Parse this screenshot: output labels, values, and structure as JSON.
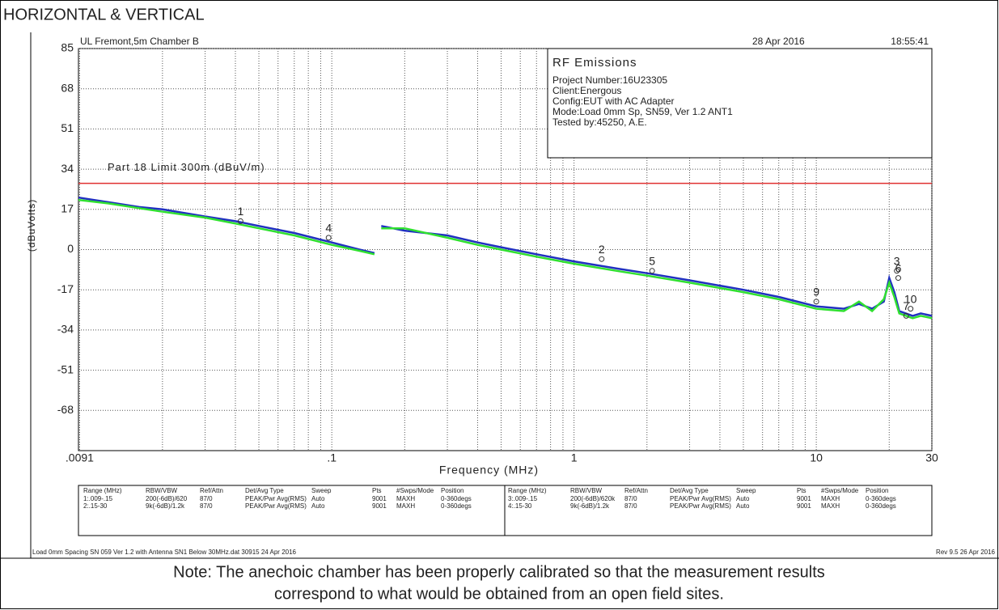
{
  "heading": "HORIZONTAL & VERTICAL",
  "chart_data": {
    "type": "line",
    "site": "UL Fremont,5m Chamber B",
    "date": "28 Apr 2016",
    "time": "18:55:41",
    "xlabel": "Frequency (MHz)",
    "ylabel": "(dBuVolts)",
    "xscale": "log",
    "grid": true,
    "xlim": [
      0.009,
      30
    ],
    "ylim": [
      -85,
      85
    ],
    "xticks": [
      {
        "value": 0.0091,
        "label": ".0091"
      },
      {
        "value": 0.1,
        "label": ".1"
      },
      1,
      10,
      30
    ],
    "xminor_ticks": [
      0.02,
      0.03,
      0.04,
      0.05,
      0.06,
      0.07,
      0.08,
      0.09,
      0.2,
      0.3,
      0.4,
      0.5,
      0.6,
      0.7,
      0.8,
      0.9,
      2,
      3,
      4,
      5,
      6,
      7,
      8,
      9,
      20
    ],
    "yticks": [
      85,
      68,
      51,
      34,
      17,
      0,
      -17,
      -34,
      -51,
      -68
    ],
    "limit": {
      "label": "Part 18 Limit 300m (dBuV/m)",
      "value": 28,
      "color": "#e03030"
    },
    "x": [
      0.009,
      0.012,
      0.016,
      0.02,
      0.03,
      0.04,
      0.05,
      0.07,
      0.1,
      0.13,
      0.15,
      0.155,
      0.16,
      0.2,
      0.3,
      0.4,
      0.5,
      0.7,
      1,
      1.5,
      2,
      3,
      5,
      7,
      10,
      13,
      15,
      17,
      19,
      20,
      21,
      22,
      25,
      27,
      30
    ],
    "series": [
      {
        "name": "Horizontal",
        "color": "#2030c0",
        "values": [
          22,
          20,
          18,
          17,
          14,
          12,
          10,
          7,
          3,
          0,
          -1.5,
          null,
          10,
          8,
          6,
          3,
          1,
          -2,
          -5,
          -8,
          -10,
          -13,
          -17,
          -20,
          -24,
          -25,
          -23,
          -25,
          -22,
          -12,
          -18,
          -26,
          -28,
          -27,
          -28
        ]
      },
      {
        "name": "Vertical",
        "color": "#30e030",
        "values": [
          21,
          19.5,
          17.5,
          16,
          13.5,
          11,
          9,
          6,
          2,
          -0.5,
          -2,
          null,
          9,
          9,
          5,
          2,
          0,
          -3,
          -6,
          -9,
          -11,
          -14,
          -18,
          -21,
          -25,
          -26,
          -22,
          -26,
          -21,
          -14,
          -20,
          -27,
          -29,
          -28,
          -29
        ]
      }
    ],
    "markers": [
      {
        "label": "1",
        "x": 0.042,
        "y": 12
      },
      {
        "label": "4",
        "x": 0.097,
        "y": 5
      },
      {
        "label": "2",
        "x": 1.3,
        "y": -4
      },
      {
        "label": "5",
        "x": 2.1,
        "y": -9
      },
      {
        "label": "9",
        "x": 10,
        "y": -22
      },
      {
        "label": "3",
        "x": 21.5,
        "y": -9
      },
      {
        "label": "6",
        "x": 21.8,
        "y": -12
      },
      {
        "label": "10",
        "x": 24.5,
        "y": -25
      },
      {
        "label": "7",
        "x": 23.5,
        "y": -28
      }
    ],
    "info": {
      "title": "RF Emissions",
      "lines": [
        "Project Number:16U23305",
        "Client:Energous",
        "Config:EUT with AC Adapter",
        "Mode:Load 0mm Sp, SN59, Ver 1.2 ANT1",
        "Tested by:45250, A.E."
      ]
    }
  },
  "table": {
    "header": [
      "Range (MHz)",
      "RBW/VBW",
      "Ref/Attn",
      "Det/Avg Type",
      "Sweep",
      "Pts",
      "#Swps/Mode",
      "Position"
    ],
    "left_rows": [
      [
        "1:.009-.15",
        "200(-6dB)/620",
        "87/0",
        "PEAK/Pwr Avg(RMS)",
        "Auto",
        "9001",
        "MAXH",
        "0-360degs"
      ],
      [
        "2:.15-30",
        "9k(-6dB)/1.2k",
        "87/0",
        "PEAK/Pwr Avg(RMS)",
        "Auto",
        "9001",
        "MAXH",
        "0-360degs"
      ]
    ],
    "right_rows": [
      [
        "3:.009-.15",
        "200(-6dB)/620k",
        "87/0",
        "PEAK/Pwr Avg(RMS)",
        "Auto",
        "9001",
        "MAXH",
        "0-360degs"
      ],
      [
        "4:.15-30",
        "9k(-6dB)/1.2k",
        "87/0",
        "PEAK/Pwr Avg(RMS)",
        "Auto",
        "9001",
        "MAXH",
        "0-360degs"
      ]
    ]
  },
  "footer_left": "Load 0mm Spacing SN 059 Ver 1.2 with Antenna SN1 Below 30MHz.dat 30915 24 Apr 2016",
  "footer_right": "Rev 9.5 26 Apr 2016",
  "note": [
    "Note: The anechoic chamber has been properly calibrated so that the measurement results",
    "correspond to what would be obtained from an open field sites."
  ]
}
